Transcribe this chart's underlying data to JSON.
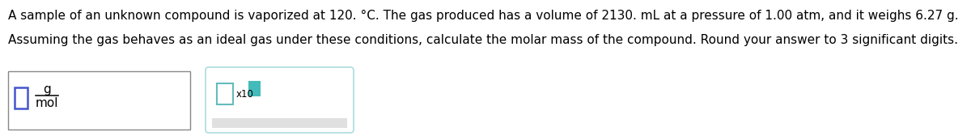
{
  "line1": "A sample of an unknown compound is vaporized at 120. °C. The gas produced has a volume of 2130. mL at a pressure of 1.00 atm, and it weighs 6.27 g.",
  "line2": "Assuming the gas behaves as an ideal gas under these conditions, calculate the molar mass of the compound. Round your answer to 3 significant digits.",
  "unit_numerator": "g",
  "unit_denominator": "mol",
  "exponent_label": "x10",
  "bg_color": "#ffffff",
  "text_color": "#000000",
  "box1_edge_color": "#4455cc",
  "box2_edge_color": "#66bbbb",
  "box3_edge_color": "#44bbbb",
  "box3_face_color": "#44bbbb",
  "outer_box1_edge": "#888888",
  "outer_box2_edge": "#aadddd",
  "gray_fill": "#e0e0e0",
  "font_size_main": 11.0,
  "font_size_unit": 11.0,
  "font_size_exp": 8.5
}
